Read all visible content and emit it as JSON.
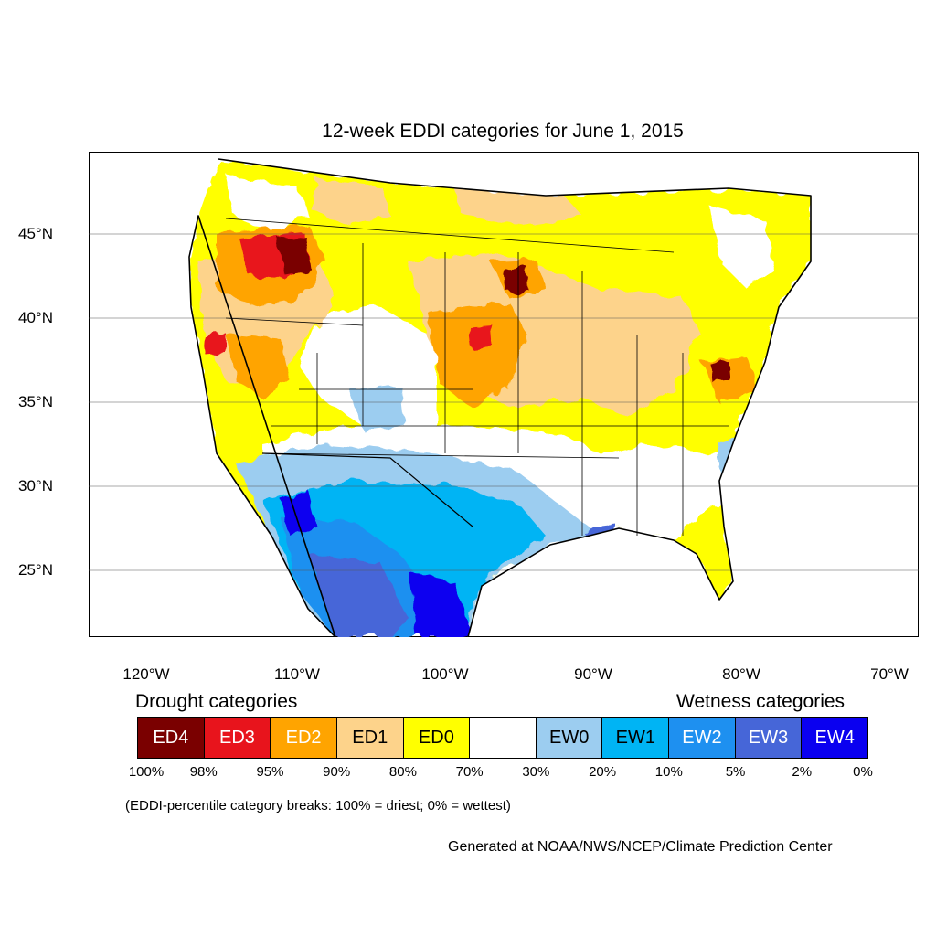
{
  "title": "12-week EDDI categories for June 1, 2015",
  "map": {
    "lat_labels": [
      "45°N",
      "40°N",
      "35°N",
      "30°N",
      "25°N"
    ],
    "lon_labels": [
      "120°W",
      "110°W",
      "100°W",
      "90°W",
      "80°W",
      "70°W"
    ],
    "lat_range": [
      21,
      50
    ],
    "lon_range": [
      -124,
      -68
    ]
  },
  "legend": {
    "drought_heading": "Drought categories",
    "wetness_heading": "Wetness categories",
    "categories": [
      {
        "label": "ED4",
        "color": "#7a0000",
        "text_color": "#ffffff"
      },
      {
        "label": "ED3",
        "color": "#e8141c",
        "text_color": "#ffffff"
      },
      {
        "label": "ED2",
        "color": "#ffa400",
        "text_color": "#ffffff"
      },
      {
        "label": "ED1",
        "color": "#fdd38b",
        "text_color": "#000000"
      },
      {
        "label": "ED0",
        "color": "#ffff00",
        "text_color": "#000000"
      },
      {
        "label": "",
        "color": "#ffffff",
        "text_color": "#000000"
      },
      {
        "label": "EW0",
        "color": "#9ccdf0",
        "text_color": "#000000"
      },
      {
        "label": "EW1",
        "color": "#00b4f4",
        "text_color": "#000000"
      },
      {
        "label": "EW2",
        "color": "#1e90f0",
        "text_color": "#ffffff"
      },
      {
        "label": "EW3",
        "color": "#4666d8",
        "text_color": "#ffffff"
      },
      {
        "label": "EW4",
        "color": "#0a00f0",
        "text_color": "#ffffff"
      }
    ],
    "breaks": [
      "100%",
      "98%",
      "95%",
      "90%",
      "80%",
      "70%",
      "30%",
      "20%",
      "10%",
      "5%",
      "2%",
      "0%"
    ]
  },
  "note": "(EDDI-percentile category breaks: 100% = driest; 0% = wettest)",
  "credit": "Generated at NOAA/NWS/NCEP/Climate Prediction Center"
}
